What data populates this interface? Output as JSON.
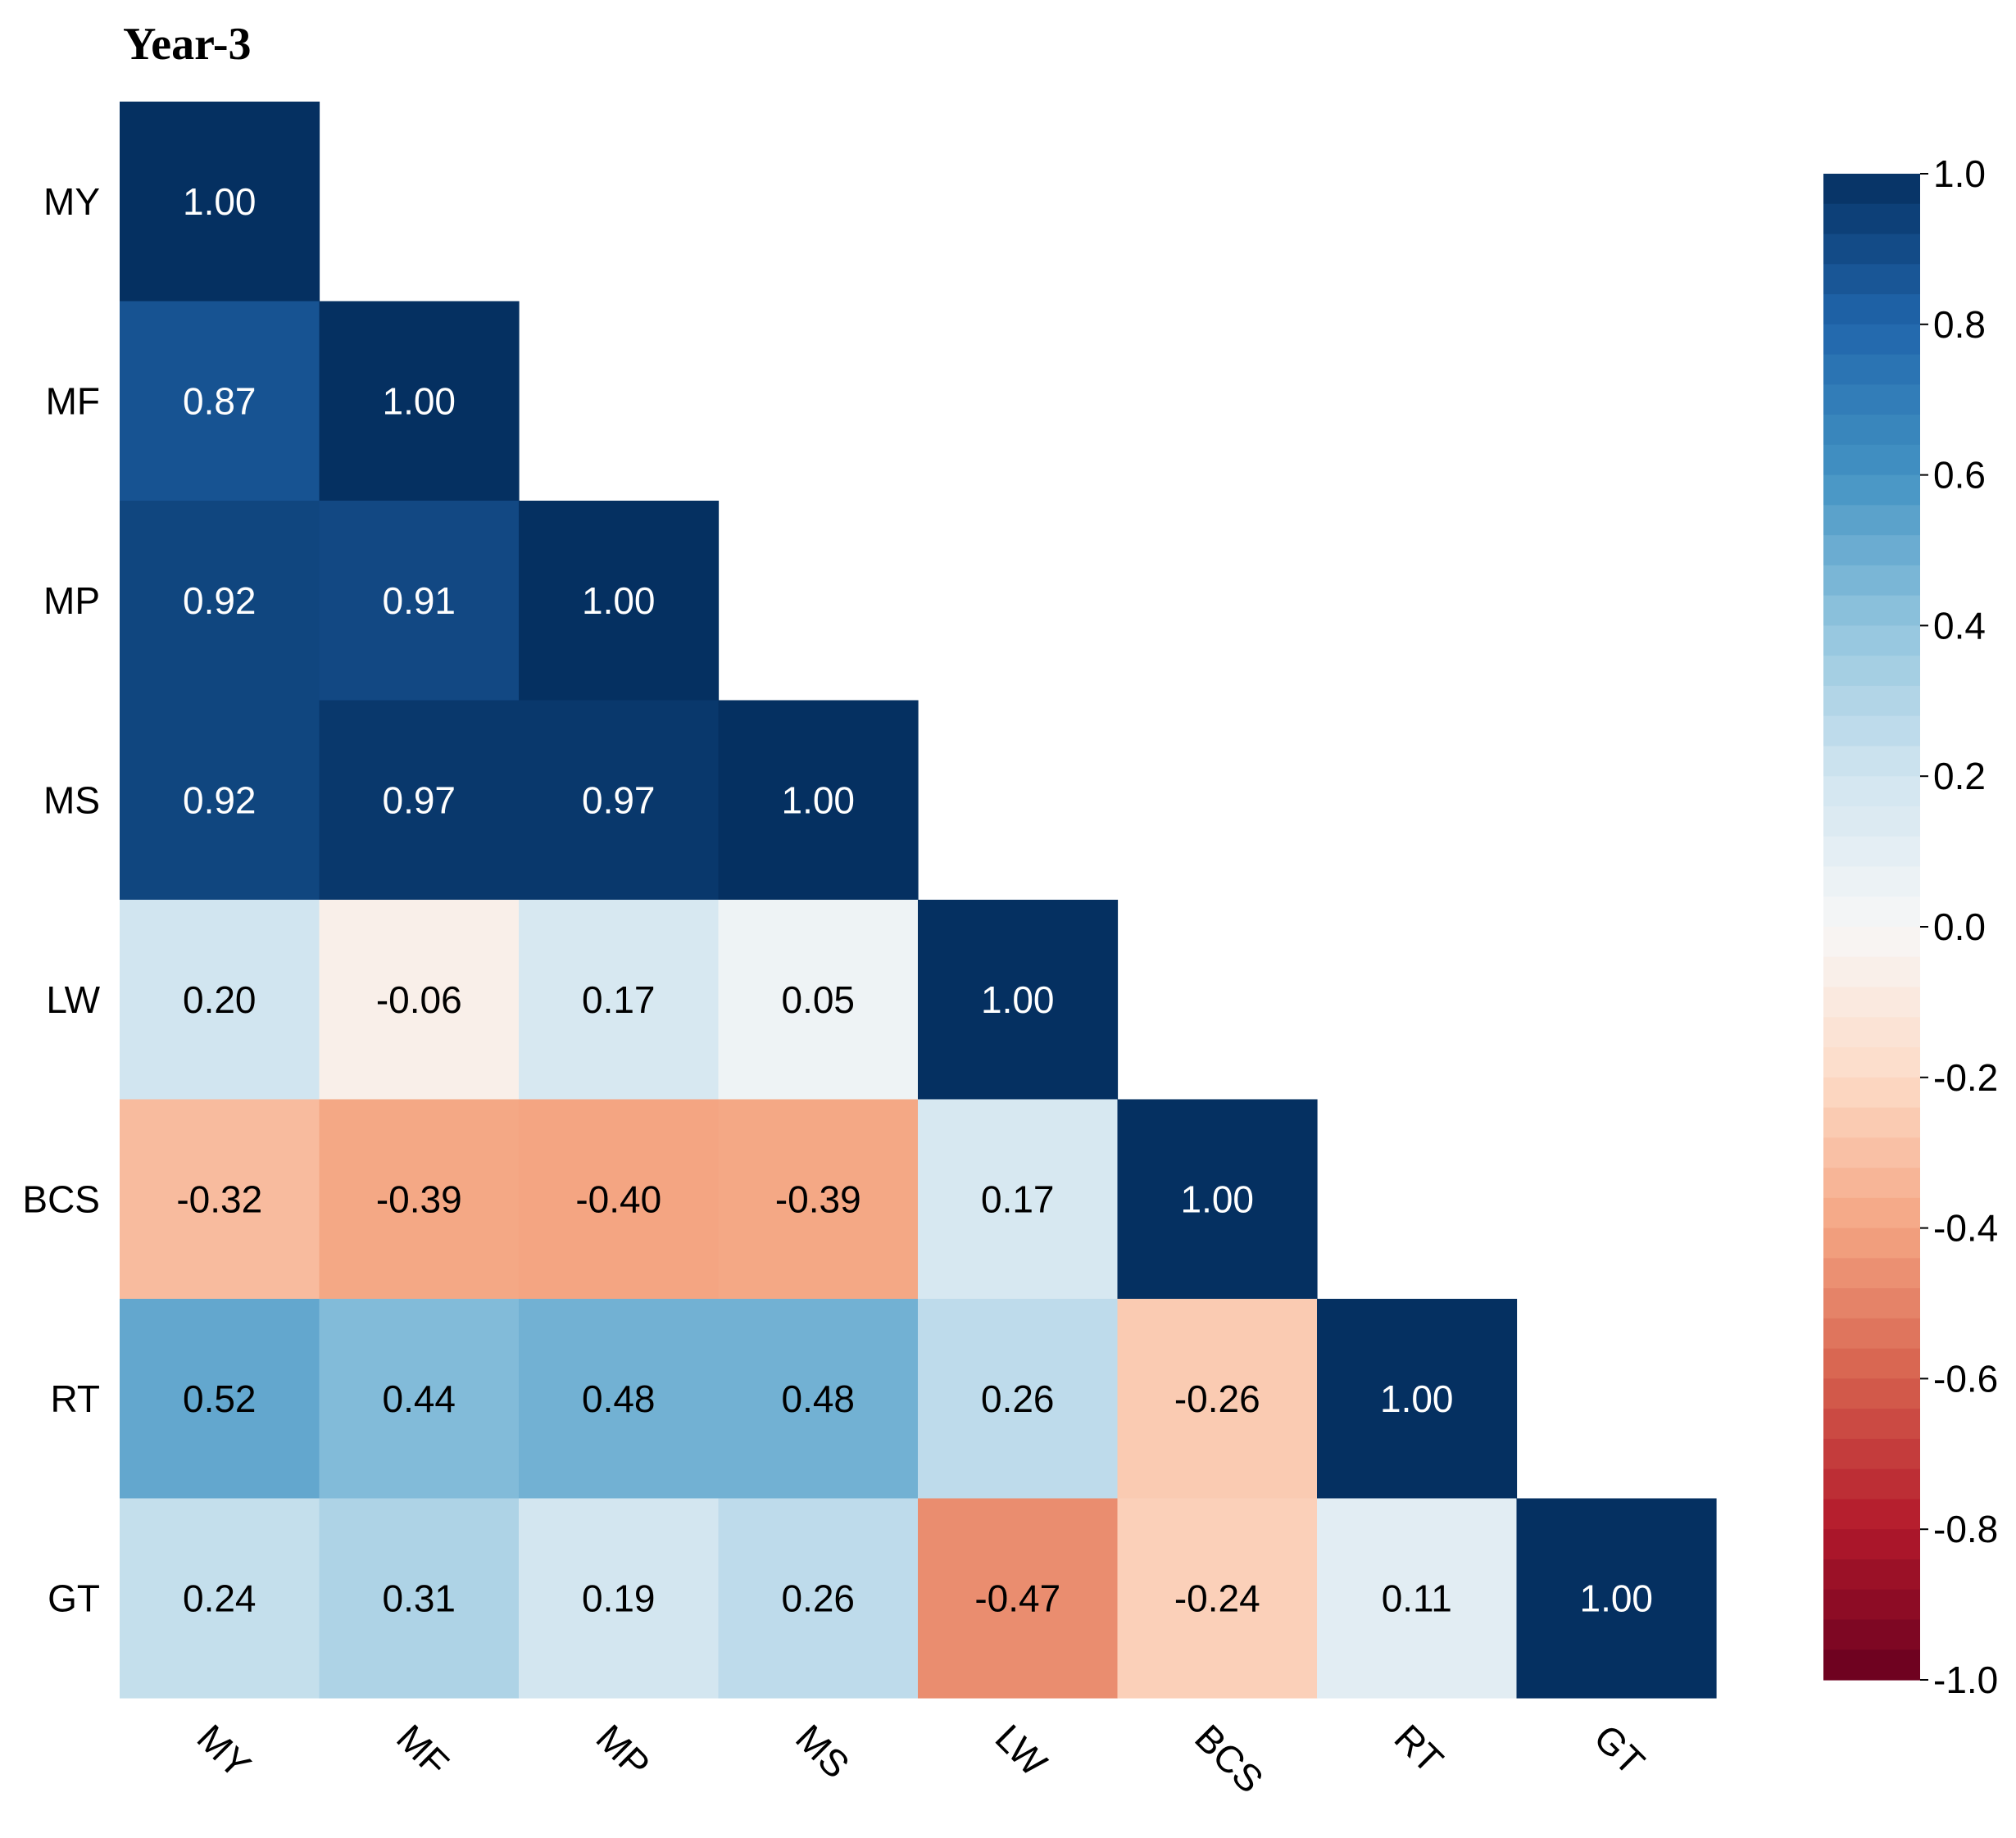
{
  "chart_data": {
    "type": "heatmap",
    "title": "Year-3",
    "xlabel": "",
    "ylabel": "",
    "x_labels": [
      "MY",
      "MF",
      "MP",
      "MS",
      "LW",
      "BCS",
      "RT",
      "GT"
    ],
    "y_labels": [
      "MY",
      "MF",
      "MP",
      "MS",
      "LW",
      "BCS",
      "RT",
      "GT"
    ],
    "values": [
      [
        "1.00"
      ],
      [
        "0.87",
        "1.00"
      ],
      [
        "0.92",
        "0.91",
        "1.00"
      ],
      [
        "0.92",
        "0.97",
        "0.97",
        "1.00"
      ],
      [
        "0.20",
        "-0.06",
        "0.17",
        "0.05",
        "1.00"
      ],
      [
        "-0.32",
        "-0.39",
        "-0.40",
        "-0.39",
        "0.17",
        "1.00"
      ],
      [
        "0.52",
        "0.44",
        "0.48",
        "0.48",
        "0.26",
        "-0.26",
        "1.00"
      ],
      [
        "0.24",
        "0.31",
        "0.19",
        "0.26",
        "-0.47",
        "-0.24",
        "0.11",
        "1.00"
      ]
    ],
    "mask": "upper-triangle",
    "colormap": "RdBu",
    "vmin": -1.0,
    "vmax": 1.0,
    "colorbar": {
      "position": "right",
      "ticks": [
        "-1.0",
        "-0.8",
        "-0.6",
        "-0.4",
        "-0.2",
        "0.0",
        "0.2",
        "0.4",
        "0.6",
        "0.8",
        "1.0"
      ]
    }
  }
}
